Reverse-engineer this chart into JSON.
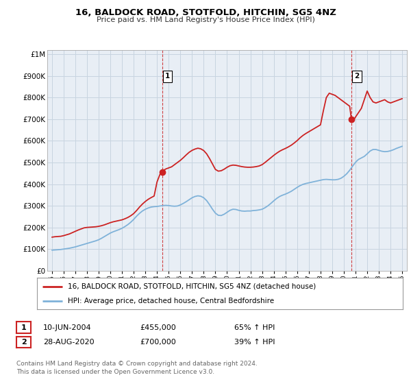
{
  "title": "16, BALDOCK ROAD, STOTFOLD, HITCHIN, SG5 4NZ",
  "subtitle": "Price paid vs. HM Land Registry's House Price Index (HPI)",
  "ylabel_ticks": [
    "£0",
    "£100K",
    "£200K",
    "£300K",
    "£400K",
    "£500K",
    "£600K",
    "£700K",
    "£800K",
    "£900K",
    "£1M"
  ],
  "ytick_values": [
    0,
    100000,
    200000,
    300000,
    400000,
    500000,
    600000,
    700000,
    800000,
    900000,
    1000000
  ],
  "ylim": [
    0,
    1020000
  ],
  "xlim_start": 1994.6,
  "xlim_end": 2025.4,
  "hpi_color": "#7fb2d9",
  "price_color": "#cc2222",
  "chart_bg": "#e8eef5",
  "marker1_date": 2004.44,
  "marker1_price": 455000,
  "marker2_date": 2020.65,
  "marker2_price": 700000,
  "legend_line1": "16, BALDOCK ROAD, STOTFOLD, HITCHIN, SG5 4NZ (detached house)",
  "legend_line2": "HPI: Average price, detached house, Central Bedfordshire",
  "table_row1": [
    "1",
    "10-JUN-2004",
    "£455,000",
    "65% ↑ HPI"
  ],
  "table_row2": [
    "2",
    "28-AUG-2020",
    "£700,000",
    "39% ↑ HPI"
  ],
  "footer": "Contains HM Land Registry data © Crown copyright and database right 2024.\nThis data is licensed under the Open Government Licence v3.0.",
  "background_color": "#ffffff",
  "grid_color": "#c8d4e0",
  "hpi_data": [
    [
      1995.0,
      95000
    ],
    [
      1995.25,
      96000
    ],
    [
      1995.5,
      97000
    ],
    [
      1995.75,
      98000
    ],
    [
      1996.0,
      100000
    ],
    [
      1996.25,
      102000
    ],
    [
      1996.5,
      104000
    ],
    [
      1996.75,
      107000
    ],
    [
      1997.0,
      110000
    ],
    [
      1997.25,
      114000
    ],
    [
      1997.5,
      118000
    ],
    [
      1997.75,
      122000
    ],
    [
      1998.0,
      126000
    ],
    [
      1998.25,
      130000
    ],
    [
      1998.5,
      134000
    ],
    [
      1998.75,
      138000
    ],
    [
      1999.0,
      143000
    ],
    [
      1999.25,
      150000
    ],
    [
      1999.5,
      158000
    ],
    [
      1999.75,
      166000
    ],
    [
      2000.0,
      174000
    ],
    [
      2000.25,
      180000
    ],
    [
      2000.5,
      185000
    ],
    [
      2000.75,
      190000
    ],
    [
      2001.0,
      196000
    ],
    [
      2001.25,
      204000
    ],
    [
      2001.5,
      213000
    ],
    [
      2001.75,
      224000
    ],
    [
      2002.0,
      237000
    ],
    [
      2002.25,
      252000
    ],
    [
      2002.5,
      265000
    ],
    [
      2002.75,
      276000
    ],
    [
      2003.0,
      284000
    ],
    [
      2003.25,
      290000
    ],
    [
      2003.5,
      294000
    ],
    [
      2003.75,
      296000
    ],
    [
      2004.0,
      297000
    ],
    [
      2004.25,
      299000
    ],
    [
      2004.5,
      301000
    ],
    [
      2004.75,
      302000
    ],
    [
      2005.0,
      301000
    ],
    [
      2005.25,
      299000
    ],
    [
      2005.5,
      298000
    ],
    [
      2005.75,
      299000
    ],
    [
      2006.0,
      304000
    ],
    [
      2006.25,
      311000
    ],
    [
      2006.5,
      319000
    ],
    [
      2006.75,
      328000
    ],
    [
      2007.0,
      337000
    ],
    [
      2007.25,
      343000
    ],
    [
      2007.5,
      346000
    ],
    [
      2007.75,
      344000
    ],
    [
      2008.0,
      337000
    ],
    [
      2008.25,
      324000
    ],
    [
      2008.5,
      305000
    ],
    [
      2008.75,
      284000
    ],
    [
      2009.0,
      266000
    ],
    [
      2009.25,
      256000
    ],
    [
      2009.5,
      255000
    ],
    [
      2009.75,
      261000
    ],
    [
      2010.0,
      270000
    ],
    [
      2010.25,
      279000
    ],
    [
      2010.5,
      284000
    ],
    [
      2010.75,
      283000
    ],
    [
      2011.0,
      279000
    ],
    [
      2011.25,
      276000
    ],
    [
      2011.5,
      275000
    ],
    [
      2011.75,
      276000
    ],
    [
      2012.0,
      276000
    ],
    [
      2012.25,
      278000
    ],
    [
      2012.5,
      279000
    ],
    [
      2012.75,
      281000
    ],
    [
      2013.0,
      284000
    ],
    [
      2013.25,
      291000
    ],
    [
      2013.5,
      300000
    ],
    [
      2013.75,
      311000
    ],
    [
      2014.0,
      323000
    ],
    [
      2014.25,
      334000
    ],
    [
      2014.5,
      343000
    ],
    [
      2014.75,
      349000
    ],
    [
      2015.0,
      354000
    ],
    [
      2015.25,
      360000
    ],
    [
      2015.5,
      367000
    ],
    [
      2015.75,
      376000
    ],
    [
      2016.0,
      385000
    ],
    [
      2016.25,
      393000
    ],
    [
      2016.5,
      399000
    ],
    [
      2016.75,
      403000
    ],
    [
      2017.0,
      406000
    ],
    [
      2017.25,
      409000
    ],
    [
      2017.5,
      412000
    ],
    [
      2017.75,
      415000
    ],
    [
      2018.0,
      418000
    ],
    [
      2018.25,
      421000
    ],
    [
      2018.5,
      422000
    ],
    [
      2018.75,
      421000
    ],
    [
      2019.0,
      420000
    ],
    [
      2019.25,
      420000
    ],
    [
      2019.5,
      422000
    ],
    [
      2019.75,
      427000
    ],
    [
      2020.0,
      436000
    ],
    [
      2020.25,
      448000
    ],
    [
      2020.5,
      464000
    ],
    [
      2020.75,
      483000
    ],
    [
      2021.0,
      501000
    ],
    [
      2021.25,
      514000
    ],
    [
      2021.5,
      521000
    ],
    [
      2021.75,
      528000
    ],
    [
      2022.0,
      540000
    ],
    [
      2022.25,
      553000
    ],
    [
      2022.5,
      560000
    ],
    [
      2022.75,
      560000
    ],
    [
      2023.0,
      556000
    ],
    [
      2023.25,
      552000
    ],
    [
      2023.5,
      550000
    ],
    [
      2023.75,
      551000
    ],
    [
      2024.0,
      554000
    ],
    [
      2024.25,
      559000
    ],
    [
      2024.5,
      565000
    ],
    [
      2024.75,
      570000
    ],
    [
      2025.0,
      575000
    ]
  ],
  "price_data": [
    [
      1995.0,
      155000
    ],
    [
      1995.25,
      157000
    ],
    [
      1995.5,
      158000
    ],
    [
      1995.75,
      159000
    ],
    [
      1996.0,
      162000
    ],
    [
      1996.25,
      166000
    ],
    [
      1996.5,
      170000
    ],
    [
      1996.75,
      176000
    ],
    [
      1997.0,
      182000
    ],
    [
      1997.25,
      188000
    ],
    [
      1997.5,
      193000
    ],
    [
      1997.75,
      198000
    ],
    [
      1998.0,
      200000
    ],
    [
      1998.25,
      201000
    ],
    [
      1998.5,
      202000
    ],
    [
      1998.75,
      203000
    ],
    [
      1999.0,
      205000
    ],
    [
      1999.25,
      208000
    ],
    [
      1999.5,
      212000
    ],
    [
      1999.75,
      217000
    ],
    [
      2000.0,
      222000
    ],
    [
      2000.25,
      226000
    ],
    [
      2000.5,
      229000
    ],
    [
      2000.75,
      232000
    ],
    [
      2001.0,
      235000
    ],
    [
      2001.25,
      240000
    ],
    [
      2001.5,
      246000
    ],
    [
      2001.75,
      254000
    ],
    [
      2002.0,
      264000
    ],
    [
      2002.25,
      278000
    ],
    [
      2002.5,
      294000
    ],
    [
      2002.75,
      308000
    ],
    [
      2003.0,
      320000
    ],
    [
      2003.25,
      330000
    ],
    [
      2003.5,
      338000
    ],
    [
      2003.75,
      345000
    ],
    [
      2004.0,
      410000
    ],
    [
      2004.25,
      445000
    ],
    [
      2004.44,
      455000
    ],
    [
      2004.5,
      462000
    ],
    [
      2004.75,
      470000
    ],
    [
      2005.0,
      475000
    ],
    [
      2005.25,
      480000
    ],
    [
      2005.5,
      490000
    ],
    [
      2005.75,
      500000
    ],
    [
      2006.0,
      510000
    ],
    [
      2006.25,
      522000
    ],
    [
      2006.5,
      535000
    ],
    [
      2006.75,
      547000
    ],
    [
      2007.0,
      556000
    ],
    [
      2007.25,
      562000
    ],
    [
      2007.5,
      566000
    ],
    [
      2007.75,
      563000
    ],
    [
      2008.0,
      555000
    ],
    [
      2008.25,
      540000
    ],
    [
      2008.5,
      518000
    ],
    [
      2008.75,
      493000
    ],
    [
      2009.0,
      468000
    ],
    [
      2009.25,
      460000
    ],
    [
      2009.5,
      462000
    ],
    [
      2009.75,
      469000
    ],
    [
      2010.0,
      478000
    ],
    [
      2010.25,
      485000
    ],
    [
      2010.5,
      488000
    ],
    [
      2010.75,
      487000
    ],
    [
      2011.0,
      484000
    ],
    [
      2011.25,
      481000
    ],
    [
      2011.5,
      479000
    ],
    [
      2011.75,
      478000
    ],
    [
      2012.0,
      478000
    ],
    [
      2012.25,
      479000
    ],
    [
      2012.5,
      481000
    ],
    [
      2012.75,
      484000
    ],
    [
      2013.0,
      490000
    ],
    [
      2013.25,
      500000
    ],
    [
      2013.5,
      511000
    ],
    [
      2013.75,
      522000
    ],
    [
      2014.0,
      533000
    ],
    [
      2014.25,
      543000
    ],
    [
      2014.5,
      552000
    ],
    [
      2014.75,
      559000
    ],
    [
      2015.0,
      565000
    ],
    [
      2015.25,
      572000
    ],
    [
      2015.5,
      580000
    ],
    [
      2015.75,
      590000
    ],
    [
      2016.0,
      601000
    ],
    [
      2016.25,
      614000
    ],
    [
      2016.5,
      625000
    ],
    [
      2016.75,
      634000
    ],
    [
      2017.0,
      642000
    ],
    [
      2017.25,
      650000
    ],
    [
      2017.5,
      658000
    ],
    [
      2017.75,
      666000
    ],
    [
      2018.0,
      674000
    ],
    [
      2018.25,
      740000
    ],
    [
      2018.5,
      800000
    ],
    [
      2018.75,
      820000
    ],
    [
      2019.0,
      815000
    ],
    [
      2019.25,
      810000
    ],
    [
      2019.5,
      800000
    ],
    [
      2019.75,
      790000
    ],
    [
      2020.0,
      780000
    ],
    [
      2020.25,
      770000
    ],
    [
      2020.5,
      760000
    ],
    [
      2020.65,
      700000
    ],
    [
      2020.75,
      690000
    ],
    [
      2021.0,
      710000
    ],
    [
      2021.25,
      730000
    ],
    [
      2021.5,
      750000
    ],
    [
      2021.75,
      790000
    ],
    [
      2022.0,
      830000
    ],
    [
      2022.25,
      800000
    ],
    [
      2022.5,
      780000
    ],
    [
      2022.75,
      775000
    ],
    [
      2023.0,
      780000
    ],
    [
      2023.25,
      785000
    ],
    [
      2023.5,
      790000
    ],
    [
      2023.75,
      780000
    ],
    [
      2024.0,
      775000
    ],
    [
      2024.25,
      780000
    ],
    [
      2024.5,
      785000
    ],
    [
      2024.75,
      790000
    ],
    [
      2025.0,
      795000
    ]
  ]
}
